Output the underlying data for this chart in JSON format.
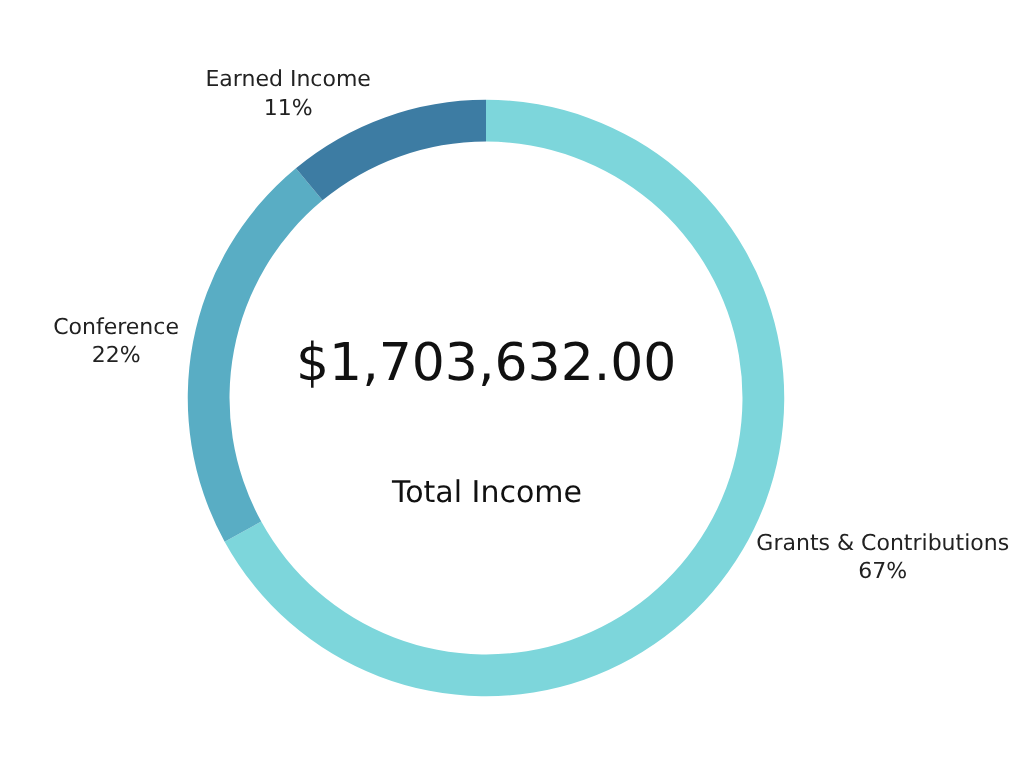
{
  "chart_data": {
    "type": "donut",
    "categories": [
      "Grants & Contributions",
      "Conference",
      "Earned Income"
    ],
    "values": [
      67,
      22,
      11
    ],
    "value_labels": [
      "67%",
      "22%",
      "11%"
    ],
    "colors": [
      "#7dd6db",
      "#59adc4",
      "#3d7ca3"
    ],
    "annotations": [
      "$1,703,632.00",
      "Total Income"
    ],
    "legend": false
  }
}
